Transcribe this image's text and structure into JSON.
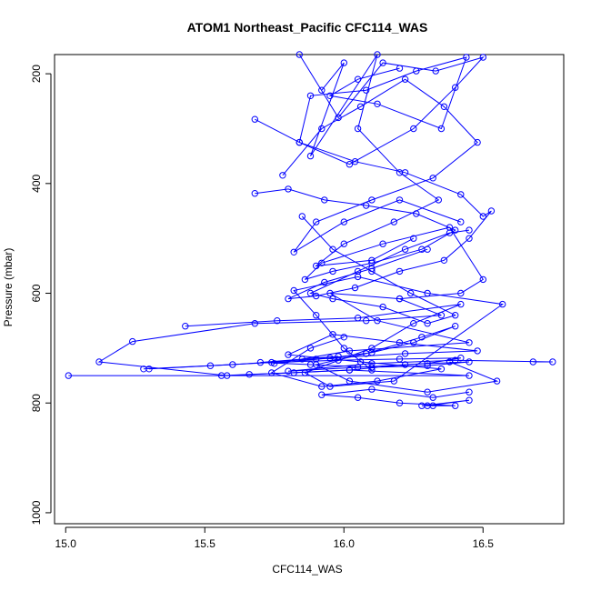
{
  "chart_data": {
    "type": "line",
    "title": "ATOM1 Northeast_Pacific CFC114_WAS",
    "xlabel": "CFC114_WAS",
    "ylabel": "Pressure (mbar)",
    "xlim": [
      14.96,
      16.79
    ],
    "ylim": [
      1020,
      165
    ],
    "y_reversed": true,
    "x_ticks": [
      15.0,
      15.5,
      16.0,
      16.5
    ],
    "x_tick_labels": [
      "15.0",
      "15.5",
      "16.0",
      "16.5"
    ],
    "y_ticks": [
      200,
      400,
      600,
      800,
      1000
    ],
    "y_tick_labels": [
      "200",
      "400",
      "600",
      "800",
      "1000"
    ],
    "grid": false,
    "legend": "none",
    "line_color": "#0000ff",
    "marker": "open-circle",
    "series": [
      {
        "x": [
          15.01,
          16.45,
          16.02,
          15.58,
          15.12,
          15.24,
          15.68,
          16.08,
          16.35,
          16.2,
          15.95,
          16.12,
          16.45,
          16.02,
          15.85
        ],
        "y": [
          750,
          750,
          740,
          750,
          725,
          688,
          655,
          650,
          640,
          610,
          600,
          650,
          690,
          705,
          720
        ]
      },
      {
        "x": [
          15.43,
          15.76,
          16.05,
          16.42,
          16.25,
          16.1,
          15.86,
          15.95,
          16.18,
          16.57,
          16.3,
          16.05,
          15.82,
          15.9,
          16.0,
          16.1
        ],
        "y": [
          660,
          650,
          645,
          620,
          655,
          700,
          745,
          770,
          760,
          620,
          600,
          570,
          595,
          640,
          700,
          740
        ]
      },
      {
        "x": [
          15.28,
          15.6,
          15.9,
          16.22,
          16.48,
          16.2,
          15.96,
          15.8,
          16.06,
          16.35,
          16.12,
          15.92,
          15.74,
          15.88,
          16.0
        ],
        "y": [
          738,
          730,
          720,
          710,
          705,
          690,
          675,
          712,
          725,
          738,
          760,
          770,
          745,
          700,
          680
        ]
      },
      {
        "x": [
          15.75,
          15.95,
          16.1,
          16.25,
          16.4,
          16.28,
          16.08,
          15.9,
          16.02,
          16.3,
          16.55,
          16.38
        ],
        "y": [
          728,
          718,
          708,
          690,
          660,
          680,
          710,
          730,
          760,
          780,
          760,
          725
        ]
      },
      {
        "x": [
          15.3,
          15.52,
          15.74,
          15.98,
          16.2,
          16.42,
          16.3,
          16.05,
          15.8,
          16.1,
          16.4,
          16.75,
          16.68
        ],
        "y": [
          738,
          732,
          726,
          722,
          720,
          718,
          728,
          735,
          742,
          728,
          722,
          725,
          725
        ]
      },
      {
        "x": [
          15.56,
          15.66,
          15.82,
          16.02,
          16.22,
          16.45,
          16.3,
          16.1,
          15.88,
          15.7,
          15.98
        ],
        "y": [
          750,
          748,
          745,
          740,
          730,
          725,
          732,
          735,
          730,
          726,
          715
        ]
      },
      {
        "x": [
          16.3,
          16.45,
          16.28,
          16.32,
          16.4,
          16.2,
          16.05,
          15.92,
          16.1,
          16.32,
          16.45
        ],
        "y": [
          805,
          795,
          805,
          805,
          805,
          800,
          790,
          785,
          775,
          790,
          780
        ]
      },
      {
        "x": [
          15.84,
          15.98,
          16.14,
          16.33,
          16.5,
          16.4,
          16.25,
          16.02,
          15.84,
          15.88,
          16.08,
          16.26,
          16.44,
          16.35,
          16.12,
          15.95,
          16.05,
          16.2
        ],
        "y": [
          165,
          280,
          180,
          195,
          170,
          225,
          300,
          365,
          325,
          240,
          230,
          195,
          170,
          300,
          255,
          240,
          210,
          190
        ]
      },
      {
        "x": [
          15.68,
          15.84,
          16.04,
          16.22,
          16.42,
          16.5,
          16.53,
          16.45,
          16.36,
          16.2,
          16.04,
          15.9,
          15.8,
          15.93,
          16.1,
          16.3
        ],
        "y": [
          283,
          325,
          360,
          380,
          420,
          460,
          450,
          500,
          540,
          560,
          590,
          605,
          610,
          580,
          555,
          520
        ]
      },
      {
        "x": [
          15.68,
          15.8,
          15.93,
          16.08,
          16.26,
          16.4,
          16.28,
          16.1,
          15.96,
          15.86,
          15.92,
          16.14,
          16.38,
          16.5,
          16.42,
          16.2
        ],
        "y": [
          418,
          410,
          430,
          440,
          455,
          485,
          520,
          545,
          560,
          575,
          545,
          510,
          480,
          575,
          600,
          610
        ]
      },
      {
        "x": [
          15.78,
          15.92,
          16.06,
          16.22,
          16.36,
          16.48,
          16.32,
          16.1,
          15.9,
          15.82,
          16.0,
          16.2,
          16.42
        ],
        "y": [
          385,
          300,
          260,
          210,
          260,
          325,
          390,
          430,
          470,
          525,
          470,
          430,
          470
        ]
      },
      {
        "x": [
          15.85,
          15.96,
          16.1,
          16.24,
          16.4,
          16.3,
          16.14,
          15.96,
          15.88,
          16.05,
          16.22,
          16.38,
          16.45
        ],
        "y": [
          460,
          520,
          560,
          600,
          640,
          655,
          625,
          610,
          600,
          560,
          520,
          490,
          485
        ]
      },
      {
        "x": [
          15.92,
          16.0,
          15.88,
          16.12,
          16.05,
          16.2,
          16.34,
          16.18,
          16.0,
          15.9,
          16.1,
          16.25
        ],
        "y": [
          230,
          180,
          350,
          165,
          300,
          380,
          430,
          470,
          510,
          550,
          540,
          500
        ]
      }
    ]
  }
}
